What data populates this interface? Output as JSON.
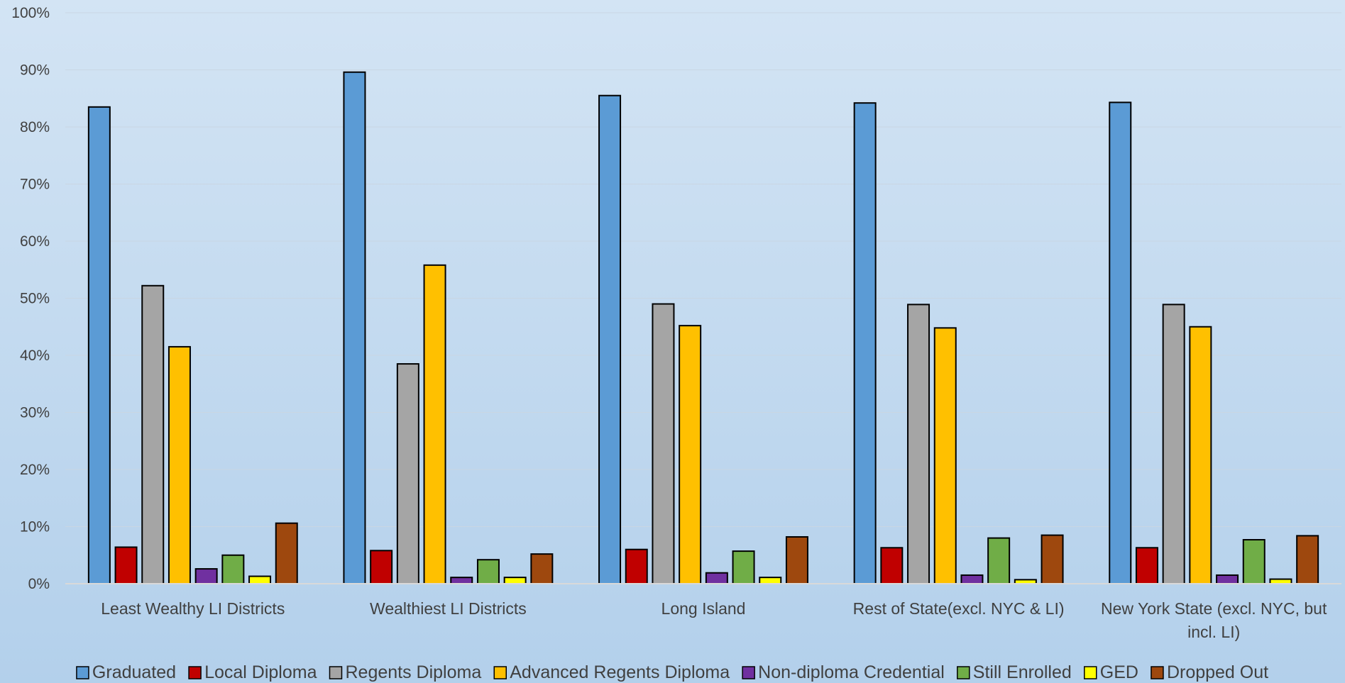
{
  "chart_data": {
    "type": "bar",
    "title": "",
    "xlabel": "",
    "ylabel": "",
    "ylim": [
      0,
      100
    ],
    "yticks": [
      "0%",
      "10%",
      "20%",
      "30%",
      "40%",
      "50%",
      "60%",
      "70%",
      "80%",
      "90%",
      "100%"
    ],
    "grid": true,
    "legend_position": "bottom",
    "categories": [
      [
        "Least Wealthy LI Districts"
      ],
      [
        "Wealthiest LI Districts"
      ],
      [
        "Long Island"
      ],
      [
        "Rest of State(excl. NYC & LI)"
      ],
      [
        "New York State (excl. NYC, but",
        "incl. LI)"
      ]
    ],
    "series": [
      {
        "name": "Graduated",
        "color": "#5b9bd5",
        "values": [
          83.5,
          89.6,
          85.5,
          84.2,
          84.3
        ]
      },
      {
        "name": "Local Diploma",
        "color": "#c00000",
        "values": [
          6.4,
          5.8,
          6.0,
          6.3,
          6.3
        ]
      },
      {
        "name": "Regents Diploma",
        "color": "#a5a5a5",
        "values": [
          52.2,
          38.5,
          49.0,
          48.9,
          48.9
        ]
      },
      {
        "name": "Advanced Regents Diploma",
        "color": "#ffc000",
        "values": [
          41.5,
          55.8,
          45.2,
          44.8,
          45.0
        ]
      },
      {
        "name": "Non-diploma Credential",
        "color": "#7030a0",
        "values": [
          2.6,
          1.1,
          1.9,
          1.5,
          1.5
        ]
      },
      {
        "name": "Still Enrolled",
        "color": "#70ad47",
        "values": [
          5.0,
          4.2,
          5.7,
          8.0,
          7.7
        ]
      },
      {
        "name": "GED",
        "color": "#ffff00",
        "values": [
          1.3,
          1.1,
          1.1,
          0.7,
          0.8
        ]
      },
      {
        "name": "Dropped Out",
        "color": "#9e480e",
        "values": [
          10.6,
          5.2,
          8.2,
          8.5,
          8.4
        ]
      }
    ]
  }
}
